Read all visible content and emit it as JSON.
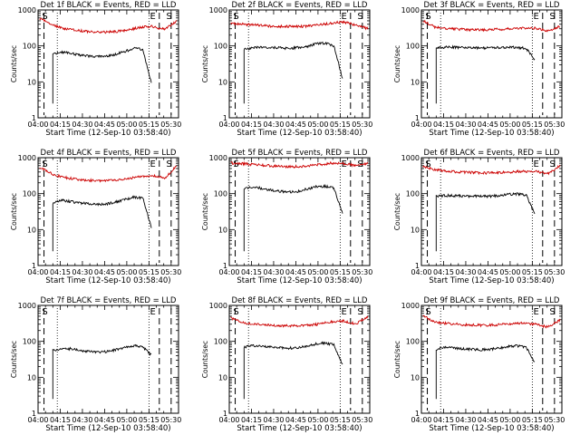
{
  "chart_data": [
    {
      "type": "line",
      "title": "Det 1f BLACK = Events, RED = LLD",
      "xlabel": "Start Time (12-Sep-10 03:58:40)",
      "ylabel": "Counts/sec",
      "yscale": "log",
      "ylim": [
        1,
        1000
      ],
      "x_ticks": [
        "04:00",
        "04:15",
        "04:30",
        "04:45",
        "05:00",
        "05:15",
        "05:30"
      ],
      "y_ticks": [
        "1",
        "10",
        "100",
        "1000"
      ],
      "markers": [
        "S",
        "E",
        "S"
      ],
      "series": [
        {
          "name": "Events",
          "color": "#000000",
          "values": [
            60,
            68,
            62,
            55,
            52,
            50,
            53,
            58,
            70,
            85,
            80,
            8
          ]
        },
        {
          "name": "LLD",
          "color": "#cc0000",
          "values": [
            600,
            380,
            300,
            270,
            250,
            240,
            250,
            270,
            330,
            350,
            290,
            500
          ]
        }
      ]
    },
    {
      "type": "line",
      "title": "Det 2f BLACK = Events, RED = LLD",
      "xlabel": "Start Time (12-Sep-10 03:58:40)",
      "ylabel": "Counts/sec",
      "yscale": "log",
      "ylim": [
        1,
        1000
      ],
      "x_ticks": [
        "04:00",
        "04:15",
        "04:30",
        "04:45",
        "05:00",
        "05:15",
        "05:30"
      ],
      "y_ticks": [
        "1",
        "10",
        "100",
        "1000"
      ],
      "markers": [
        "S",
        "E",
        "S"
      ],
      "series": [
        {
          "name": "Events",
          "color": "#000000",
          "values": [
            80,
            90,
            92,
            90,
            88,
            85,
            90,
            95,
            115,
            120,
            100,
            10
          ]
        },
        {
          "name": "LLD",
          "color": "#cc0000",
          "values": [
            420,
            400,
            380,
            360,
            350,
            345,
            350,
            380,
            430,
            460,
            380,
            300
          ]
        }
      ]
    },
    {
      "type": "line",
      "title": "Det 3f BLACK = Events, RED = LLD",
      "xlabel": "Start Time (12-Sep-10 03:58:40)",
      "ylabel": "Counts/sec",
      "yscale": "log",
      "ylim": [
        1,
        1000
      ],
      "x_ticks": [
        "04:00",
        "04:15",
        "04:30",
        "04:45",
        "05:00",
        "05:15",
        "05:30"
      ],
      "y_ticks": [
        "1",
        "10",
        "100",
        "1000"
      ],
      "markers": [
        "S",
        "E",
        "S"
      ],
      "series": [
        {
          "name": "Events",
          "color": "#000000",
          "values": [
            90,
            92,
            92,
            90,
            88,
            87,
            88,
            90,
            92,
            90,
            85,
            40
          ]
        },
        {
          "name": "LLD",
          "color": "#cc0000",
          "values": [
            500,
            330,
            300,
            290,
            280,
            280,
            290,
            300,
            320,
            310,
            260,
            350
          ]
        }
      ]
    },
    {
      "type": "line",
      "title": "Det 4f BLACK = Events, RED = LLD",
      "xlabel": "Start Time (12-Sep-10 03:58:40)",
      "ylabel": "Counts/sec",
      "yscale": "log",
      "ylim": [
        1,
        1000
      ],
      "x_ticks": [
        "04:00",
        "04:15",
        "04:30",
        "04:45",
        "05:00",
        "05:15",
        "05:30"
      ],
      "y_ticks": [
        "1",
        "10",
        "100",
        "1000"
      ],
      "markers": [
        "S",
        "E",
        "S"
      ],
      "series": [
        {
          "name": "Events",
          "color": "#000000",
          "values": [
            55,
            65,
            60,
            55,
            52,
            50,
            52,
            58,
            68,
            80,
            75,
            10
          ]
        },
        {
          "name": "LLD",
          "color": "#cc0000",
          "values": [
            550,
            350,
            280,
            250,
            235,
            225,
            235,
            255,
            300,
            320,
            270,
            600
          ]
        }
      ]
    },
    {
      "type": "line",
      "title": "Det 5f BLACK = Events, RED = LLD",
      "xlabel": "Start Time (12-Sep-10 03:58:40)",
      "ylabel": "Counts/sec",
      "yscale": "log",
      "ylim": [
        1,
        1000
      ],
      "x_ticks": [
        "04:00",
        "04:15",
        "04:30",
        "04:45",
        "05:00",
        "05:15",
        "05:30"
      ],
      "y_ticks": [
        "1",
        "10",
        "100",
        "1000"
      ],
      "markers": [
        "S",
        "E",
        "S"
      ],
      "series": [
        {
          "name": "Events",
          "color": "#000000",
          "values": [
            140,
            150,
            140,
            125,
            115,
            110,
            115,
            135,
            155,
            160,
            140,
            25
          ]
        },
        {
          "name": "LLD",
          "color": "#cc0000",
          "values": [
            700,
            680,
            640,
            600,
            570,
            560,
            580,
            640,
            700,
            690,
            600,
            700
          ]
        }
      ]
    },
    {
      "type": "line",
      "title": "Det 6f BLACK = Events, RED = LLD",
      "xlabel": "Start Time (12-Sep-10 03:58:40)",
      "ylabel": "Counts/sec",
      "yscale": "log",
      "ylim": [
        1,
        1000
      ],
      "x_ticks": [
        "04:00",
        "04:15",
        "04:30",
        "04:45",
        "05:00",
        "05:15",
        "05:30"
      ],
      "y_ticks": [
        "1",
        "10",
        "100",
        "1000"
      ],
      "markers": [
        "S",
        "E",
        "S"
      ],
      "series": [
        {
          "name": "Events",
          "color": "#000000",
          "values": [
            85,
            88,
            88,
            86,
            85,
            84,
            85,
            88,
            95,
            98,
            90,
            25
          ]
        },
        {
          "name": "LLD",
          "color": "#cc0000",
          "values": [
            580,
            460,
            420,
            400,
            385,
            375,
            380,
            400,
            420,
            410,
            360,
            600
          ]
        }
      ]
    },
    {
      "type": "line",
      "title": "Det 7f BLACK = Events, RED = LLD",
      "xlabel": "Start Time (12-Sep-10 03:58:40)",
      "ylabel": "Counts/sec",
      "yscale": "log",
      "ylim": [
        1,
        1000
      ],
      "x_ticks": [
        "04:00",
        "04:15",
        "04:30",
        "04:45",
        "05:00",
        "05:15",
        "05:30"
      ],
      "y_ticks": [
        "1",
        "10",
        "100",
        "1000"
      ],
      "markers": [
        "S",
        "E"
      ],
      "series": [
        {
          "name": "Events",
          "color": "#000000",
          "values": [
            55,
            65,
            62,
            56,
            52,
            50,
            52,
            58,
            68,
            75,
            70,
            40
          ]
        }
      ]
    },
    {
      "type": "line",
      "title": "Det 8f BLACK = Events, RED = LLD",
      "xlabel": "Start Time (12-Sep-10 03:58:40)",
      "ylabel": "Counts/sec",
      "yscale": "log",
      "ylim": [
        1,
        1000
      ],
      "x_ticks": [
        "04:00",
        "04:15",
        "04:30",
        "04:45",
        "05:00",
        "05:15",
        "05:30"
      ],
      "y_ticks": [
        "1",
        "10",
        "100",
        "1000"
      ],
      "markers": [
        "S",
        "E",
        "S"
      ],
      "series": [
        {
          "name": "Events",
          "color": "#000000",
          "values": [
            70,
            75,
            72,
            68,
            66,
            65,
            67,
            72,
            85,
            90,
            80,
            20
          ]
        },
        {
          "name": "LLD",
          "color": "#cc0000",
          "values": [
            450,
            330,
            300,
            285,
            275,
            270,
            280,
            300,
            350,
            370,
            310,
            500
          ]
        }
      ]
    },
    {
      "type": "line",
      "title": "Det 9f BLACK = Events, RED = LLD",
      "xlabel": "Start Time (12-Sep-10 03:58:40)",
      "ylabel": "Counts/sec",
      "yscale": "log",
      "ylim": [
        1,
        1000
      ],
      "x_ticks": [
        "04:00",
        "04:15",
        "04:30",
        "04:45",
        "05:00",
        "05:15",
        "05:30"
      ],
      "y_ticks": [
        "1",
        "10",
        "100",
        "1000"
      ],
      "markers": [
        "S",
        "E",
        "S"
      ],
      "series": [
        {
          "name": "Events",
          "color": "#000000",
          "values": [
            60,
            68,
            66,
            62,
            60,
            58,
            60,
            65,
            72,
            75,
            68,
            25
          ]
        },
        {
          "name": "LLD",
          "color": "#cc0000",
          "values": [
            520,
            340,
            310,
            295,
            285,
            280,
            290,
            305,
            320,
            300,
            250,
            400
          ]
        }
      ]
    }
  ]
}
